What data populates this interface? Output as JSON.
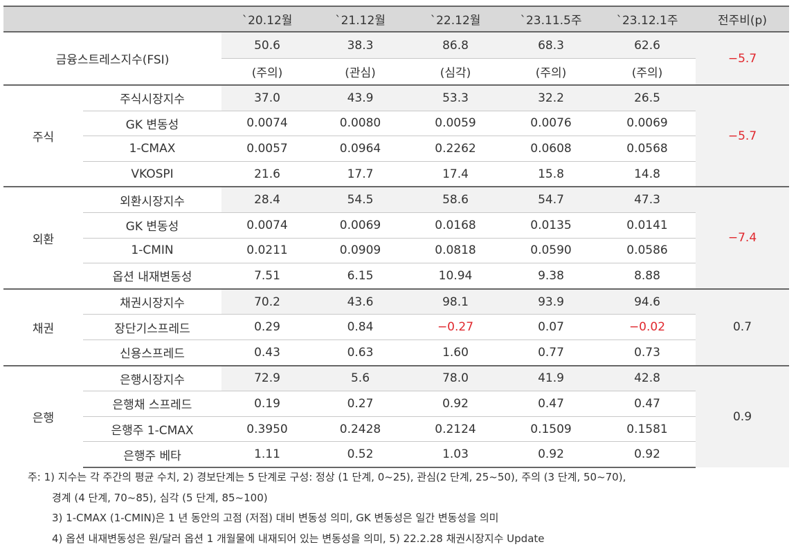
{
  "header": {
    "columns": [
      "`20.12월",
      "`21.12월",
      "`22.12월",
      "`23.11.5주",
      "`23.12.1주",
      "전주비(p)"
    ]
  },
  "fsi": {
    "label": "금융스트레스지수(FSI)",
    "values": [
      "50.6",
      "38.3",
      "86.8",
      "68.3",
      "62.6"
    ],
    "levels": [
      "(주의)",
      "(관심)",
      "(심각)",
      "(주의)",
      "(주의)"
    ],
    "change": "−5.7"
  },
  "groups": [
    {
      "label": "주식",
      "change": "−5.7",
      "rows": [
        {
          "label": "주식시장지수",
          "values": [
            "37.0",
            "43.9",
            "53.3",
            "32.2",
            "26.5"
          ]
        },
        {
          "label": "GK 변동성",
          "values": [
            "0.0074",
            "0.0080",
            "0.0059",
            "0.0076",
            "0.0069"
          ]
        },
        {
          "label": "1-CMAX",
          "values": [
            "0.0057",
            "0.0964",
            "0.2262",
            "0.0608",
            "0.0568"
          ]
        },
        {
          "label": "VKOSPI",
          "values": [
            "21.6",
            "17.7",
            "17.4",
            "15.8",
            "14.8"
          ]
        }
      ]
    },
    {
      "label": "외환",
      "change": "−7.4",
      "rows": [
        {
          "label": "외환시장지수",
          "values": [
            "28.4",
            "54.5",
            "58.6",
            "54.7",
            "47.3"
          ]
        },
        {
          "label": "GK 변동성",
          "values": [
            "0.0074",
            "0.0069",
            "0.0168",
            "0.0135",
            "0.0141"
          ]
        },
        {
          "label": "1-CMIN",
          "values": [
            "0.0211",
            "0.0909",
            "0.0818",
            "0.0590",
            "0.0586"
          ]
        },
        {
          "label": "옵션 내재변동성",
          "values": [
            "7.51",
            "6.15",
            "10.94",
            "9.38",
            "8.88"
          ]
        }
      ]
    },
    {
      "label": "채권",
      "change": "0.7",
      "rows": [
        {
          "label": "채권시장지수",
          "values": [
            "70.2",
            "43.6",
            "98.1",
            "93.9",
            "94.6"
          ]
        },
        {
          "label": "장단기스프레드",
          "values": [
            "0.29",
            "0.84",
            "−0.27",
            "0.07",
            "−0.02"
          ]
        },
        {
          "label": "신용스프레드",
          "values": [
            "0.43",
            "0.63",
            "1.60",
            "0.77",
            "0.73"
          ]
        }
      ]
    },
    {
      "label": "은행",
      "change": "0.9",
      "rows": [
        {
          "label": "은행시장지수",
          "values": [
            "72.9",
            "5.6",
            "78.0",
            "41.9",
            "42.8"
          ]
        },
        {
          "label": "은행채 스프레드",
          "values": [
            "0.19",
            "0.27",
            "0.92",
            "0.47",
            "0.47"
          ]
        },
        {
          "label": "은행주 1-CMAX",
          "values": [
            "0.3950",
            "0.2428",
            "0.2124",
            "0.1509",
            "0.1581"
          ]
        },
        {
          "label": "은행주 베타",
          "values": [
            "1.11",
            "0.52",
            "1.03",
            "0.92",
            "0.92"
          ]
        }
      ]
    }
  ],
  "notes": [
    "주: 1) 지수는 각 주간의 평균 수치, 2) 경보단계는 5 단계로 구성: 정상 (1 단계, 0~25), 관심(2 단계, 25~50), 주의 (3 단계, 50~70),",
    "경계 (4 단계, 70~85), 심각 (5 단계, 85~100)",
    "3) 1-CMAX (1-CMIN)은 1 년 동안의 고점 (저점) 대비 변동성 의미, GK 변동성은 일간 변동성을 의미",
    "4) 옵션 내재변동성은 원/달러 옵션 1 개월물에 내재되어 있는 변동성을 의미, 5) 22.2.28 채권시장지수 Update"
  ]
}
